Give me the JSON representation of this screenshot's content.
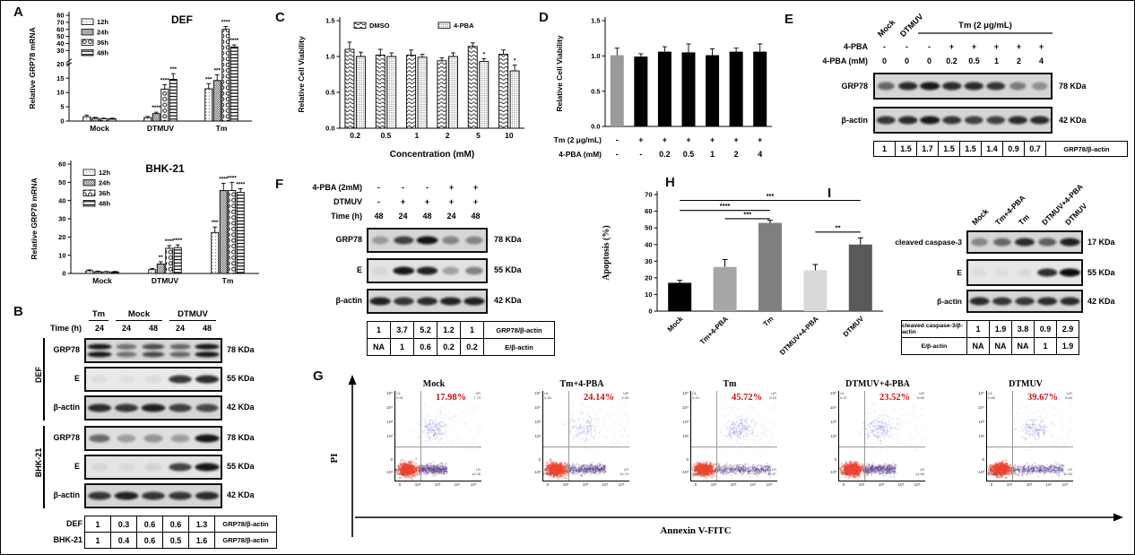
{
  "panels": {
    "A": {
      "label": "A",
      "charts": [
        {
          "id": "def",
          "title": "DEF",
          "ylabel": "Relative GRP78 mRNA",
          "legend": [
            "12h",
            "24h",
            "36h",
            "48h"
          ],
          "categories": [
            "Mock",
            "DTMUV",
            "Tm"
          ],
          "axis_break": {
            "low_max": 20,
            "high_min": 20,
            "high_max": 80,
            "low_ticks": [
              0,
              5,
              10,
              15,
              20
            ],
            "high_ticks": [
              30,
              40,
              50,
              60,
              70,
              80
            ]
          },
          "series": [
            {
              "name": "12h",
              "values": [
                1.5,
                1.2,
                11.3
              ],
              "errors": [
                0.6,
                0.4,
                1.8
              ],
              "sig": [
                "",
                "",
                "***"
              ]
            },
            {
              "name": "24h",
              "values": [
                1.0,
                2.6,
                14.2
              ],
              "errors": [
                0.3,
                0.5,
                2.0
              ],
              "sig": [
                "",
                "****",
                "***"
              ]
            },
            {
              "name": "36h",
              "values": [
                0.8,
                11.2,
                60.0
              ],
              "errors": [
                0.2,
                1.5,
                4.0
              ],
              "sig": [
                "",
                "****",
                "****"
              ]
            },
            {
              "name": "48h",
              "values": [
                0.8,
                14.6,
                35.0
              ],
              "errors": [
                0.2,
                2.0,
                3.0
              ],
              "sig": [
                "",
                "***",
                "****"
              ]
            }
          ]
        },
        {
          "id": "bhk",
          "title": "BHK-21",
          "ylabel": "Relative GRP78 mRNA",
          "legend": [
            "12h",
            "24h",
            "36h",
            "48h"
          ],
          "categories": [
            "Mock",
            "DTMUV",
            "Tm"
          ],
          "ymax": 60,
          "yticks": [
            0,
            10,
            20,
            30,
            40,
            50,
            60
          ],
          "series": [
            {
              "name": "12h",
              "values": [
                1.5,
                2.1,
                22.5
              ],
              "errors": [
                0.5,
                0.6,
                3.0
              ],
              "sig": [
                "",
                "",
                "***"
              ]
            },
            {
              "name": "24h",
              "values": [
                1.0,
                5.2,
                45.5
              ],
              "errors": [
                0.3,
                1.2,
                4.0
              ],
              "sig": [
                "",
                "**",
                "****"
              ]
            },
            {
              "name": "36h",
              "values": [
                0.9,
                13.8,
                45.5
              ],
              "errors": [
                0.2,
                1.5,
                4.5
              ],
              "sig": [
                "",
                "****",
                "****"
              ]
            },
            {
              "name": "48h",
              "values": [
                0.9,
                14.2,
                44.5
              ],
              "errors": [
                0.2,
                1.5,
                2.0
              ],
              "sig": [
                "",
                "****",
                "****"
              ]
            }
          ]
        }
      ]
    },
    "B": {
      "label": "B",
      "groups": [
        {
          "name": "Tm",
          "span": 1
        },
        {
          "name": "Mock",
          "span": 2
        },
        {
          "name": "DTMUV",
          "span": 2
        }
      ],
      "time_row": {
        "label": "Time (h)",
        "values": [
          "24",
          "24",
          "48",
          "24",
          "48"
        ]
      },
      "cell_groups": [
        {
          "name": "DEF",
          "rows": [
            {
              "label": "GRP78",
              "kda": "78 KDa",
              "double": true,
              "bands": [
                0.95,
                0.5,
                0.7,
                0.55,
                0.95
              ]
            },
            {
              "label": "E",
              "kda": "55 KDa",
              "bg": "#e9e9e9",
              "bands": [
                0.05,
                0.04,
                0.06,
                0.8,
                0.85
              ]
            },
            {
              "label": "β-actin",
              "kda": "42 KDa",
              "bands": [
                0.85,
                0.8,
                0.9,
                0.75,
                0.7
              ]
            }
          ]
        },
        {
          "name": "BHK-21",
          "rows": [
            {
              "label": "GRP78",
              "kda": "78 KDa",
              "bg": "#dedede",
              "bands": [
                0.55,
                0.3,
                0.35,
                0.3,
                0.95
              ]
            },
            {
              "label": "E",
              "kda": "55 KDa",
              "bg": "#e4e4e4",
              "bands": [
                0.06,
                0.05,
                0.08,
                0.75,
                0.95
              ]
            },
            {
              "label": "β-actin",
              "kda": "42 KDa",
              "bands": [
                0.8,
                0.9,
                0.8,
                0.8,
                0.85
              ]
            }
          ]
        }
      ],
      "table": {
        "rows": [
          {
            "label": "DEF",
            "values": [
              "1",
              "0.3",
              "0.6",
              "0.6",
              "1.3"
            ],
            "ratio": "GRP78/β-actin"
          },
          {
            "label": "BHK-21",
            "values": [
              "1",
              "0.4",
              "0.6",
              "0.5",
              "1.6"
            ],
            "ratio": "GRP78/β-actin"
          }
        ]
      }
    },
    "C": {
      "label": "C",
      "ylabel": "Relative Cell Viability",
      "xlabel": "Concentration (mM)",
      "legend": [
        "DMSO",
        "4-PBA"
      ],
      "categories": [
        "0.2",
        "0.5",
        "1",
        "2",
        "5",
        "10"
      ],
      "ymax": 1.5,
      "yticks": [
        0,
        0.5,
        1,
        1.5
      ],
      "ytick_labels": [
        "0.0",
        "0.5",
        "1.0",
        "1.5"
      ],
      "series": [
        {
          "name": "DMSO",
          "values": [
            1.1,
            1.02,
            1.02,
            0.94,
            1.14,
            1.03
          ],
          "errors": [
            0.1,
            0.08,
            0.07,
            0.04,
            0.05,
            0.06
          ],
          "sig": [
            "",
            "",
            "",
            "",
            "",
            ""
          ]
        },
        {
          "name": "4-PBA",
          "values": [
            1.0,
            1.0,
            0.99,
            1.0,
            0.93,
            0.8
          ],
          "errors": [
            0.06,
            0.05,
            0.04,
            0.05,
            0.04,
            0.08
          ],
          "sig": [
            "",
            "",
            "",
            "",
            "*",
            "*"
          ]
        }
      ]
    },
    "D": {
      "label": "D",
      "ylabel": "Relative Cell Viability",
      "ymax": 1.5,
      "yticks": [
        0,
        0.5,
        1,
        1.5
      ],
      "ytick_labels": [
        "0.0",
        "0.5",
        "1.0",
        "1.5"
      ],
      "values": [
        1.01,
        0.99,
        1.06,
        1.05,
        1.01,
        1.06,
        1.06
      ],
      "errors": [
        0.1,
        0.04,
        0.07,
        0.12,
        0.09,
        0.05,
        0.11
      ],
      "first_color": "#9a9a9a",
      "bar_color": "#000000",
      "rows": [
        {
          "label": "Tm (2 μg/mL)",
          "values": [
            "-",
            "+",
            "+",
            "+",
            "+",
            "+",
            "+"
          ]
        },
        {
          "label": "4-PBA (mM)",
          "values": [
            "-",
            "-",
            "0.2",
            "0.5",
            "1",
            "2",
            "4"
          ]
        }
      ]
    },
    "E": {
      "label": "E",
      "rot_headers": [
        "Mock",
        "DTMUV"
      ],
      "span_header": "Tm (2 μg/mL)",
      "rows": [
        {
          "label": "4-PBA",
          "values": [
            "-",
            "-",
            "-",
            "+",
            "+",
            "+",
            "+",
            "+"
          ]
        },
        {
          "label": "4-PBA (mM)",
          "values": [
            "0",
            "0",
            "0",
            "0.2",
            "0.5",
            "1",
            "2",
            "4"
          ]
        }
      ],
      "blots": [
        {
          "label": "GRP78",
          "kda": "78 KDa",
          "bands": [
            0.55,
            0.85,
            0.95,
            0.85,
            0.85,
            0.8,
            0.45,
            0.35
          ]
        },
        {
          "label": "β-actin",
          "kda": "42 KDa",
          "bands": [
            0.8,
            0.85,
            0.95,
            0.8,
            0.75,
            0.75,
            0.85,
            0.85
          ]
        }
      ],
      "table": {
        "values": [
          "1",
          "1.5",
          "1.7",
          "1.5",
          "1.5",
          "1.4",
          "0.9",
          "0.7"
        ],
        "ratio": "GRP78/β-actin"
      }
    },
    "F": {
      "label": "F",
      "rows": [
        {
          "label": "4-PBA (2mM)",
          "values": [
            "-",
            "-",
            "-",
            "+",
            "+"
          ]
        },
        {
          "label": "DTMUV",
          "values": [
            "-",
            "+",
            "+",
            "+",
            "+"
          ]
        },
        {
          "label": "Time (h)",
          "values": [
            "48",
            "24",
            "48",
            "24",
            "48"
          ]
        }
      ],
      "blots": [
        {
          "label": "GRP78",
          "kda": "78 KDa",
          "bands": [
            0.3,
            0.75,
            0.97,
            0.4,
            0.4
          ]
        },
        {
          "label": "E",
          "kda": "55 KDa",
          "bg": "#e2e2e2",
          "bands": [
            0.05,
            0.95,
            0.9,
            0.3,
            0.45
          ]
        },
        {
          "label": "β-actin",
          "kda": "42 KDa",
          "bands": [
            0.9,
            0.8,
            0.85,
            0.9,
            0.9
          ]
        }
      ],
      "table": {
        "rows": [
          {
            "values": [
              "1",
              "3.7",
              "5.2",
              "1.2",
              "1"
            ],
            "ratio": "GRP78/β-actin"
          },
          {
            "values": [
              "NA",
              "1",
              "0.6",
              "0.2",
              "0.2"
            ],
            "ratio": "E/β-actin"
          }
        ]
      }
    },
    "H": {
      "label": "H",
      "ylabel": "Apoptosis (%)",
      "ymax": 70,
      "yticks": [
        0,
        10,
        20,
        30,
        40,
        50,
        60,
        70
      ],
      "categories": [
        "Mock",
        "Tm+4-PBA",
        "Tm",
        "DTMUV+4-PBA",
        "DTMUV"
      ],
      "values": [
        17,
        26.5,
        53,
        24.5,
        40
      ],
      "errors": [
        1.5,
        4.5,
        1.5,
        3.5,
        4
      ],
      "colors": [
        "#000000",
        "#a6a6a6",
        "#7f7f7f",
        "#d9d9d9",
        "#595959"
      ],
      "sig": [
        {
          "a": 0,
          "b": 4,
          "y": 66.5,
          "label": "***"
        },
        {
          "a": 0,
          "b": 2,
          "y": 60.5,
          "label": "****"
        },
        {
          "a": 1,
          "b": 2,
          "y": 55.5,
          "label": "***"
        },
        {
          "a": 3,
          "b": 4,
          "y": 47.5,
          "label": "**"
        }
      ]
    },
    "I": {
      "label": "I",
      "rot_headers": [
        "Mock",
        "Tm+4-PBA",
        "Tm",
        "DTMUV+4-PBA",
        "DTMUV"
      ],
      "blots": [
        {
          "label": "cleaved caspase-3",
          "kda": "17 KDa",
          "bands": [
            0.4,
            0.55,
            0.85,
            0.6,
            0.9
          ]
        },
        {
          "label": "E",
          "kda": "55 KDa",
          "bg": "#e6e6e6",
          "bands": [
            0.04,
            0.04,
            0.06,
            0.85,
            1.0
          ]
        },
        {
          "label": "β-actin",
          "kda": "42 KDa",
          "bands": [
            0.85,
            0.8,
            0.8,
            0.85,
            0.85
          ]
        }
      ],
      "table": {
        "rows": [
          {
            "label": "cleaved caspase-3/β-actin",
            "values": [
              "1",
              "1.9",
              "3.8",
              "0.9",
              "2.9"
            ]
          },
          {
            "label": "E/β-actin",
            "values": [
              "NA",
              "NA",
              "NA",
              "1",
              "1.9"
            ]
          }
        ]
      }
    },
    "G": {
      "label": "G",
      "ylabel": "PI",
      "xlabel": "Annexin V-FITC",
      "pct_color": "#cc1111",
      "yticks": [
        "10⁵",
        "10⁴",
        "10³",
        "10²",
        "0",
        "-10³"
      ],
      "xticks": [
        "0",
        "10²",
        "10³",
        "10⁴",
        "10⁵"
      ],
      "plots": [
        {
          "title": "Mock",
          "pct": "17.98%",
          "ul": "0.91",
          "ur": "7.73",
          "ll": "81.11",
          "lr": "10.25"
        },
        {
          "title": "Tm+4-PBA",
          "pct": "24.14%",
          "ul": "0.26",
          "ur": "4.35",
          "ll": "75.60",
          "lr": "19.79"
        },
        {
          "title": "Tm",
          "pct": "45.72%",
          "ul": "0.15",
          "ur": "9.15",
          "ll": "54.13",
          "lr": "36.57"
        },
        {
          "title": "DTMUV+4-PBA",
          "pct": "23.52%",
          "ul": "0.37",
          "ur": "8.86",
          "ll": "76.11",
          "lr": "14.66"
        },
        {
          "title": "DTMUV",
          "pct": "39.67%",
          "ul": "0.68",
          "ur": "6.84",
          "ll": "59.65",
          "lr": "32.83"
        }
      ]
    }
  }
}
